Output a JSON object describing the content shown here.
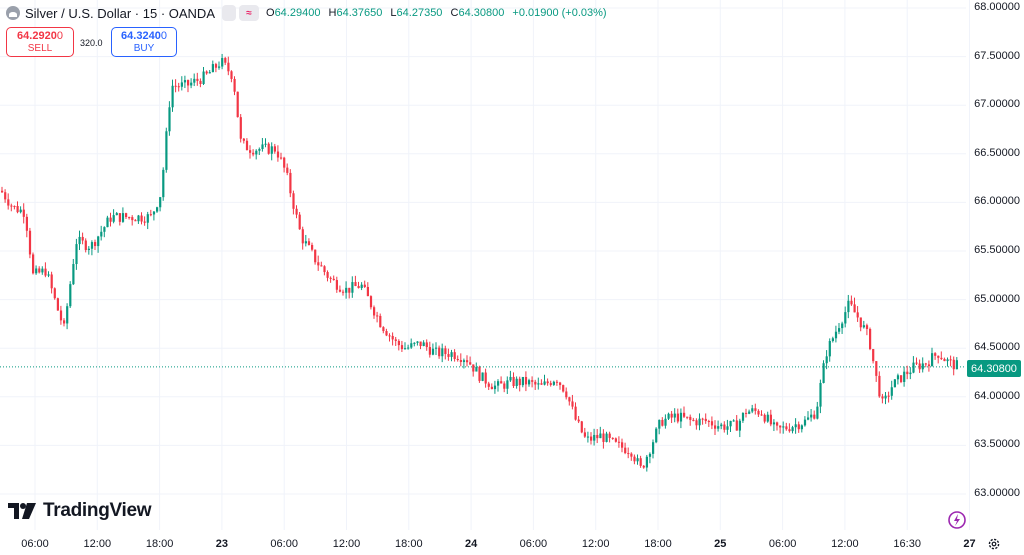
{
  "legend": {
    "title": "Silver / U.S. Dollar · 15 · OANDA",
    "open_label": "O",
    "open": "64.29400",
    "high_label": "H",
    "high": "64.37650",
    "low_label": "L",
    "low": "64.27350",
    "close_label": "C",
    "close": "64.30800",
    "change": "+0.01900 (+0.03%)",
    "chip_symbol": "≈"
  },
  "trade": {
    "sell_price": "64.2920",
    "sell_price_tail": "0",
    "sell_label": "SELL",
    "spread": "320.0",
    "buy_price": "64.3240",
    "buy_price_tail": "0",
    "buy_label": "BUY"
  },
  "brand": "TradingView",
  "last_price_label": "64.30800",
  "colors": {
    "up": "#089981",
    "down": "#f23645",
    "grid": "#f0f3fa",
    "brand_pink": "#e91e63"
  },
  "icons": [
    "silver-symbol-icon",
    "tradingview-logo-icon",
    "fibonacci-icon",
    "settings-gear-icon"
  ],
  "chart_data": {
    "type": "candlestick",
    "title": "Silver / U.S. Dollar · 15 · OANDA",
    "ylim": [
      62.95,
      68.05
    ],
    "y_ticks": [
      "68.00000",
      "67.50000",
      "67.00000",
      "66.50000",
      "66.00000",
      "65.50000",
      "65.00000",
      "64.50000",
      "64.00000",
      "63.50000",
      "63.00000"
    ],
    "x_ticks": [
      {
        "label": "06:00",
        "bold": false
      },
      {
        "label": "12:00",
        "bold": false
      },
      {
        "label": "18:00",
        "bold": false
      },
      {
        "label": "23",
        "bold": true
      },
      {
        "label": "06:00",
        "bold": false
      },
      {
        "label": "12:00",
        "bold": false
      },
      {
        "label": "18:00",
        "bold": false
      },
      {
        "label": "24",
        "bold": true
      },
      {
        "label": "06:00",
        "bold": false
      },
      {
        "label": "12:00",
        "bold": false
      },
      {
        "label": "18:00",
        "bold": false
      },
      {
        "label": "25",
        "bold": true
      },
      {
        "label": "06:00",
        "bold": false
      },
      {
        "label": "12:00",
        "bold": false
      },
      {
        "label": "16:30",
        "bold": false
      },
      {
        "label": "27",
        "bold": true
      }
    ],
    "last_price": 64.308,
    "close_path": [
      [
        0,
        66.12
      ],
      [
        12,
        65.95
      ],
      [
        24,
        65.9
      ],
      [
        32,
        65.25
      ],
      [
        45,
        65.3
      ],
      [
        55,
        64.95
      ],
      [
        63,
        64.7
      ],
      [
        75,
        65.6
      ],
      [
        90,
        65.55
      ],
      [
        110,
        65.85
      ],
      [
        130,
        65.85
      ],
      [
        150,
        65.85
      ],
      [
        160,
        66.1
      ],
      [
        170,
        67.2
      ],
      [
        185,
        67.2
      ],
      [
        205,
        67.3
      ],
      [
        220,
        67.45
      ],
      [
        232,
        67.3
      ],
      [
        240,
        66.6
      ],
      [
        250,
        66.55
      ],
      [
        262,
        66.55
      ],
      [
        275,
        66.55
      ],
      [
        285,
        66.3
      ],
      [
        300,
        65.65
      ],
      [
        315,
        65.4
      ],
      [
        330,
        65.2
      ],
      [
        345,
        65.1
      ],
      [
        360,
        65.15
      ],
      [
        370,
        64.95
      ],
      [
        380,
        64.75
      ],
      [
        395,
        64.55
      ],
      [
        405,
        64.5
      ],
      [
        420,
        64.55
      ],
      [
        435,
        64.45
      ],
      [
        450,
        64.45
      ],
      [
        465,
        64.4
      ],
      [
        480,
        64.2
      ],
      [
        495,
        64.1
      ],
      [
        510,
        64.15
      ],
      [
        525,
        64.15
      ],
      [
        540,
        64.1
      ],
      [
        555,
        64.2
      ],
      [
        565,
        64.05
      ],
      [
        575,
        63.75
      ],
      [
        585,
        63.55
      ],
      [
        600,
        63.6
      ],
      [
        615,
        63.5
      ],
      [
        630,
        63.45
      ],
      [
        640,
        63.25
      ],
      [
        650,
        63.5
      ],
      [
        660,
        63.75
      ],
      [
        675,
        63.8
      ],
      [
        690,
        63.75
      ],
      [
        705,
        63.75
      ],
      [
        720,
        63.7
      ],
      [
        735,
        63.7
      ],
      [
        745,
        63.85
      ],
      [
        760,
        63.85
      ],
      [
        775,
        63.65
      ],
      [
        790,
        63.7
      ],
      [
        805,
        63.75
      ],
      [
        815,
        63.85
      ],
      [
        825,
        64.45
      ],
      [
        838,
        64.75
      ],
      [
        848,
        64.95
      ],
      [
        858,
        64.8
      ],
      [
        868,
        64.6
      ],
      [
        875,
        64.2
      ],
      [
        882,
        63.9
      ],
      [
        890,
        64.1
      ],
      [
        900,
        64.2
      ],
      [
        912,
        64.3
      ],
      [
        925,
        64.35
      ],
      [
        937,
        64.45
      ],
      [
        948,
        64.35
      ],
      [
        958,
        64.31
      ]
    ]
  }
}
